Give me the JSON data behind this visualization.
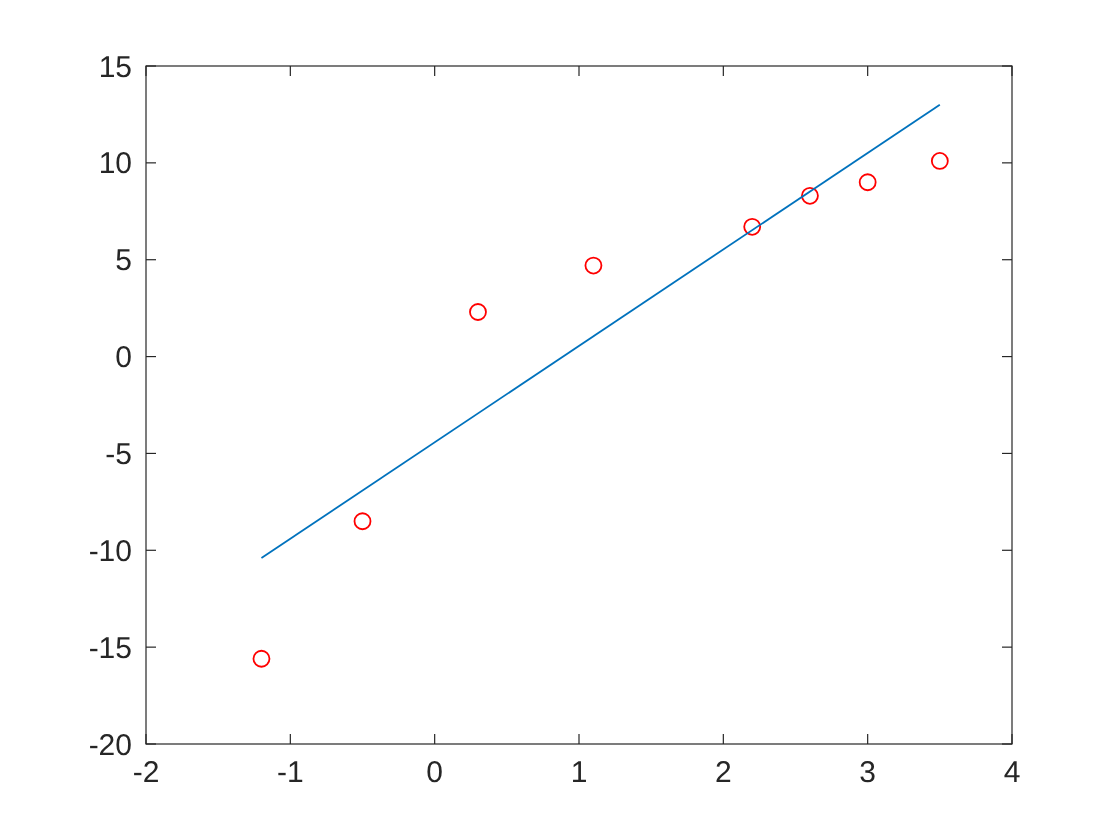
{
  "chart_data": {
    "type": "scatter",
    "xlim": [
      -2,
      4
    ],
    "xticks": [
      -2,
      -1,
      0,
      1,
      2,
      3,
      4
    ],
    "ylim": [
      -20,
      15
    ],
    "yticks": [
      -20,
      -15,
      -10,
      -5,
      0,
      5,
      10,
      15
    ],
    "series": [
      {
        "color": "#ff0000",
        "marker": "circle",
        "x": [
          -1.2,
          -0.5,
          0.3,
          1.1,
          2.2,
          2.6,
          3.0,
          3.5
        ],
        "values": [
          -15.6,
          -8.5,
          2.3,
          4.7,
          6.7,
          8.3,
          9.0,
          10.1
        ]
      },
      {
        "type": "line",
        "color": "#0072bd",
        "marker": "none",
        "x": [
          -1.2,
          3.5
        ],
        "values": [
          -10.4,
          13
        ]
      }
    ]
  }
}
